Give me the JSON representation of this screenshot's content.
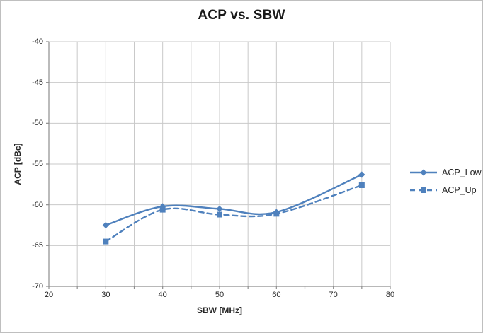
{
  "window": {
    "background": "#ffffff",
    "border_color": "#bfbfbf"
  },
  "chart_data": {
    "type": "line",
    "title": "ACP vs. SBW",
    "xlabel": "SBW [MHz]",
    "ylabel": "ACP [dBc]",
    "x": [
      30,
      40,
      50,
      60,
      75
    ],
    "series": [
      {
        "name": "ACP_Low",
        "values": [
          -62.5,
          -60.2,
          -60.5,
          -60.9,
          -56.3
        ],
        "line_style": "solid",
        "marker": "diamond"
      },
      {
        "name": "ACP_Up",
        "values": [
          -64.5,
          -60.6,
          -61.2,
          -61.1,
          -57.6
        ],
        "line_style": "dashed",
        "marker": "square"
      }
    ],
    "xlim": [
      20,
      80
    ],
    "ylim": [
      -70,
      -40
    ],
    "x_tick_labels": [
      20,
      30,
      40,
      50,
      60,
      70,
      80
    ],
    "y_tick_labels": [
      -40,
      -45,
      -50,
      -55,
      -60,
      -65,
      -70
    ],
    "x_grid_step": 5,
    "y_grid_step": 5,
    "grid": true,
    "legend_position": "right-outside",
    "colors": {
      "series": "#4F81BD",
      "grid": "#c9c9c9",
      "axis": "#8e8e8e",
      "tick_text": "#262626",
      "title_text": "#1a1a1a"
    }
  }
}
